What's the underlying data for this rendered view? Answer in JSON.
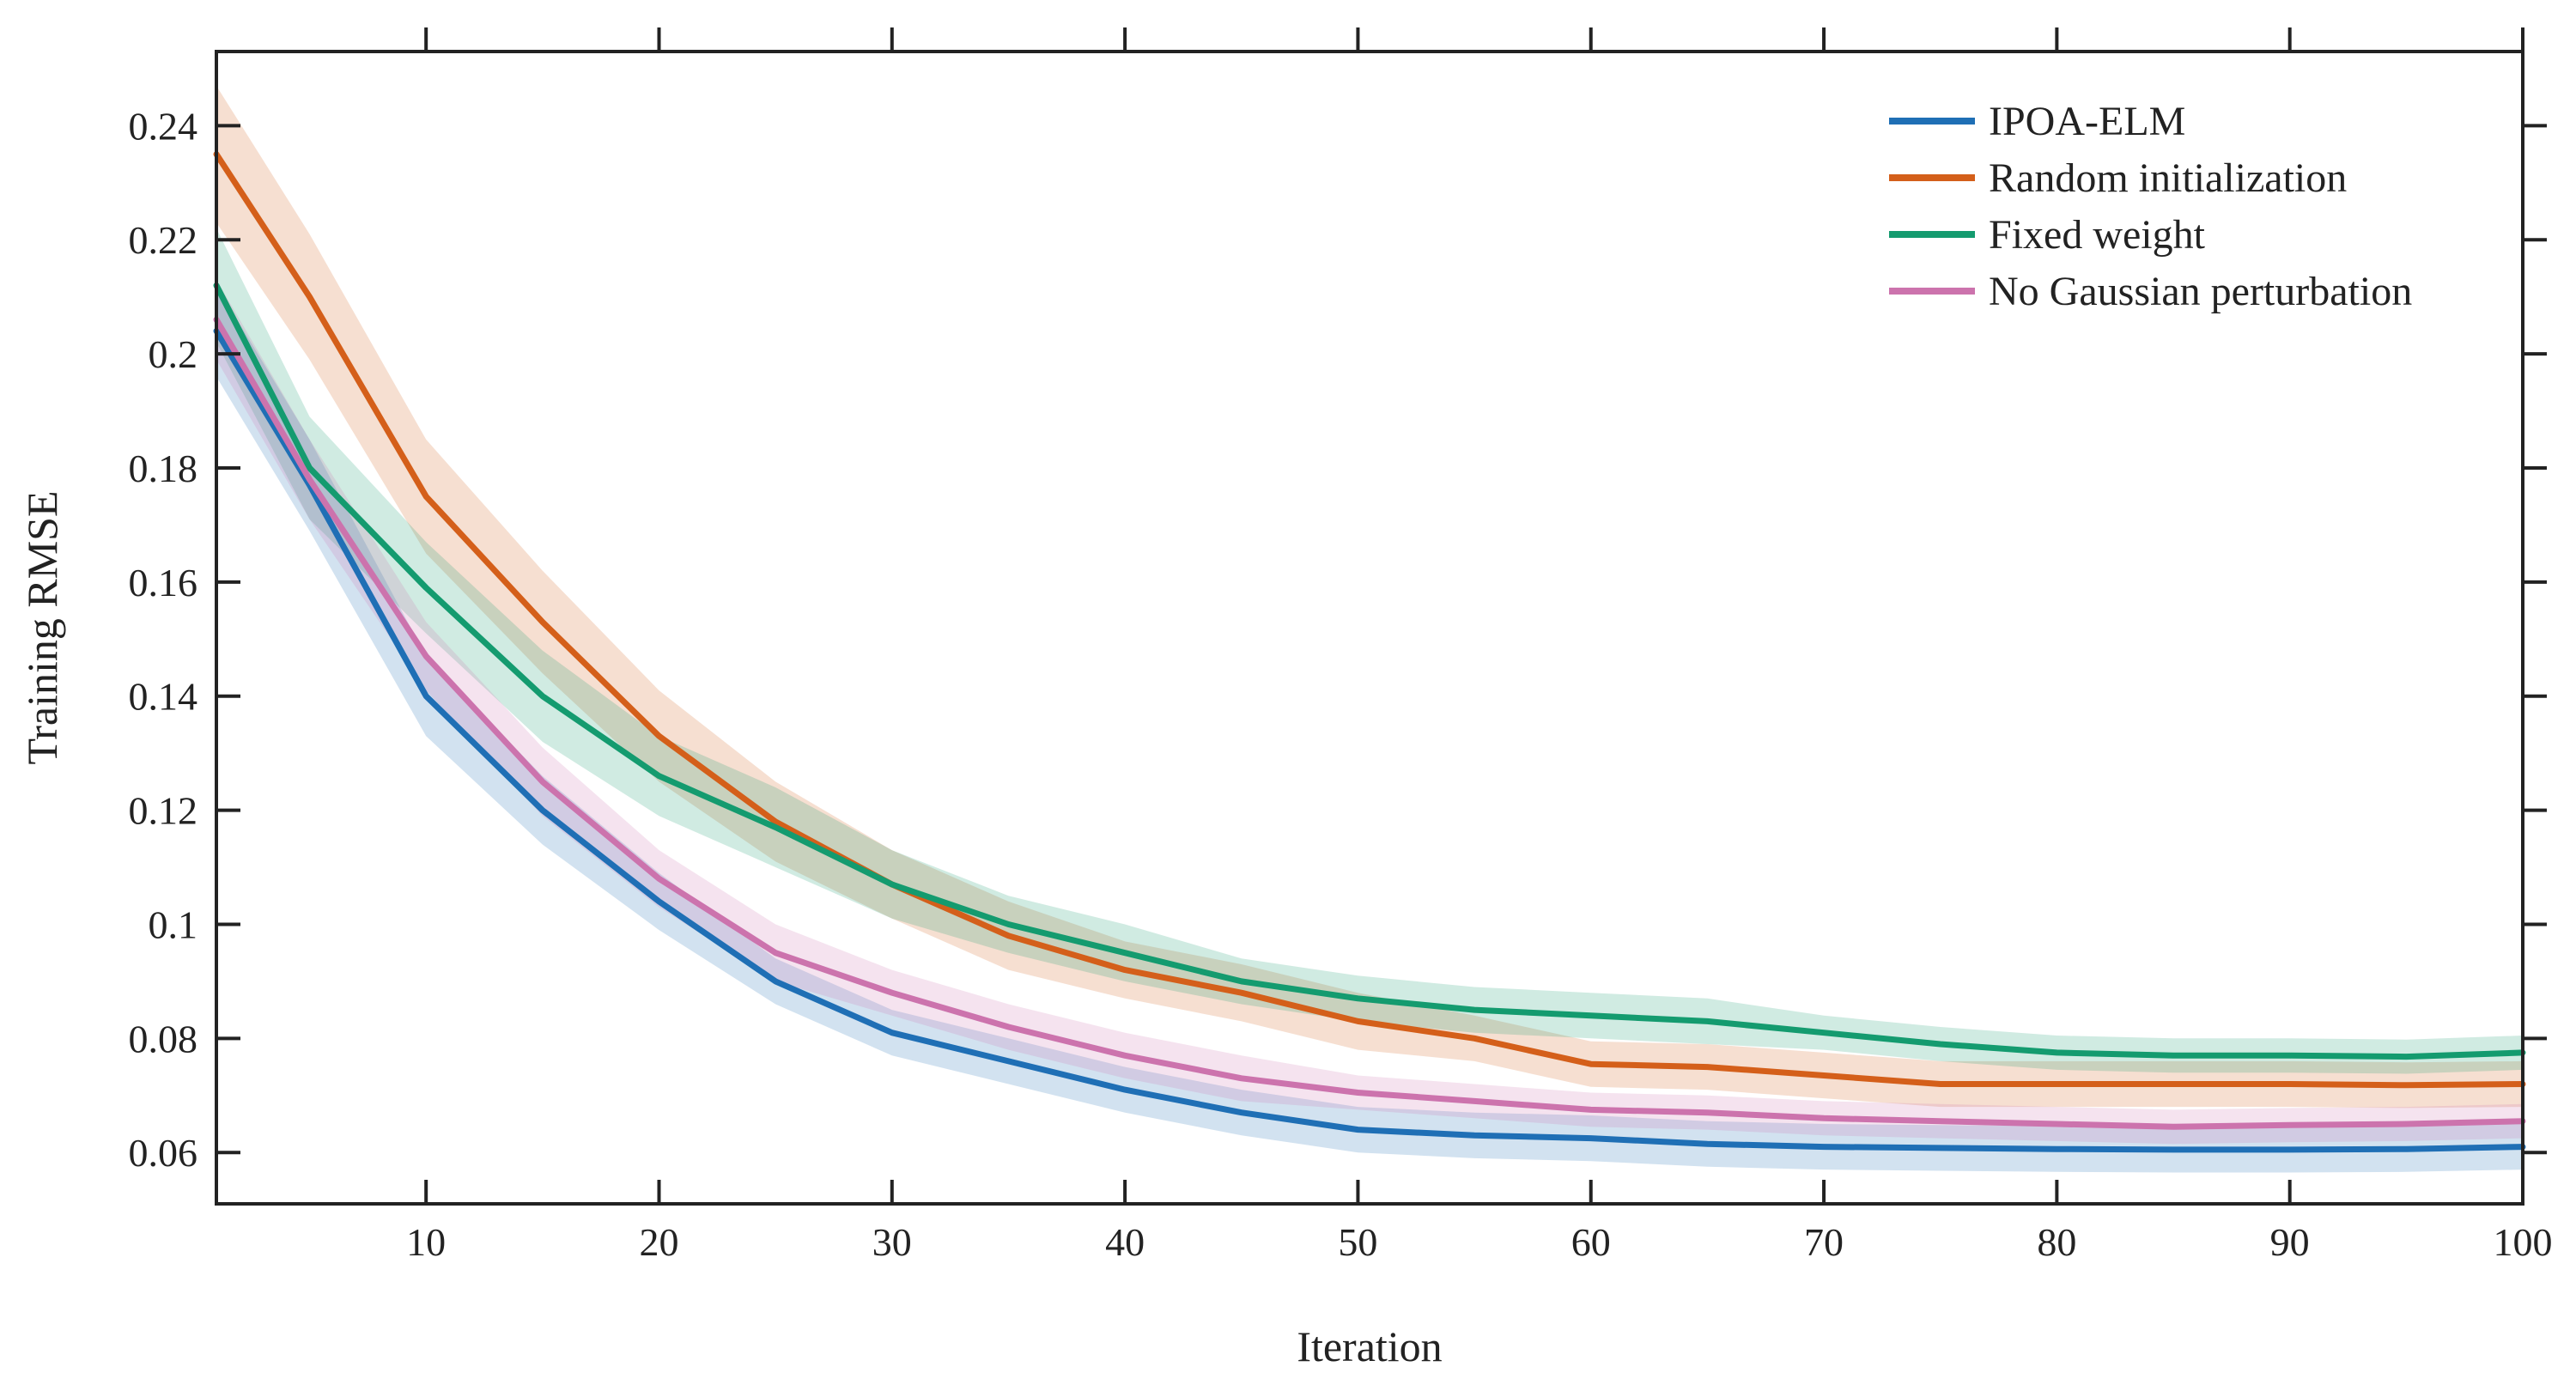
{
  "chart_data": {
    "type": "line",
    "title": "",
    "xlabel": "Iteration",
    "ylabel": "Training RMSE",
    "xlim": [
      1,
      100
    ],
    "ylim": [
      0.051,
      0.253
    ],
    "xticks": [
      10,
      20,
      30,
      40,
      50,
      60,
      70,
      80,
      90,
      100
    ],
    "xtick_labels": [
      "10",
      "20",
      "30",
      "40",
      "50",
      "60",
      "70",
      "80",
      "90",
      "100"
    ],
    "yticks": [
      0.06,
      0.08,
      0.1,
      0.12,
      0.14,
      0.16,
      0.18,
      0.2,
      0.22,
      0.24
    ],
    "ytick_labels": [
      "0.06",
      "0.08",
      "0.1",
      "0.12",
      "0.14",
      "0.16",
      "0.18",
      "0.2",
      "0.22",
      "0.24"
    ],
    "grid": false,
    "legend_position": "top-right",
    "shaded_bands": "mean ± spread",
    "series": [
      {
        "name": "IPOA-ELM",
        "color": "#1f6fb5",
        "x": [
          1,
          5,
          10,
          15,
          20,
          25,
          30,
          35,
          40,
          45,
          50,
          55,
          60,
          65,
          70,
          75,
          80,
          85,
          90,
          95,
          100
        ],
        "values": [
          0.204,
          0.177,
          0.14,
          0.12,
          0.104,
          0.09,
          0.081,
          0.076,
          0.071,
          0.067,
          0.064,
          0.063,
          0.0625,
          0.0615,
          0.061,
          0.0608,
          0.0606,
          0.0605,
          0.0605,
          0.0606,
          0.061
        ],
        "band": [
          0.008,
          0.008,
          0.007,
          0.006,
          0.005,
          0.004,
          0.004,
          0.004,
          0.004,
          0.004,
          0.004,
          0.004,
          0.004,
          0.004,
          0.004,
          0.004,
          0.004,
          0.004,
          0.004,
          0.004,
          0.004
        ]
      },
      {
        "name": "Random initialization",
        "color": "#d45f1a",
        "x": [
          1,
          5,
          10,
          15,
          20,
          25,
          30,
          35,
          40,
          45,
          50,
          55,
          60,
          65,
          70,
          75,
          80,
          85,
          90,
          95,
          100
        ],
        "values": [
          0.235,
          0.21,
          0.175,
          0.153,
          0.133,
          0.118,
          0.107,
          0.098,
          0.092,
          0.088,
          0.083,
          0.08,
          0.0755,
          0.075,
          0.0735,
          0.072,
          0.072,
          0.072,
          0.072,
          0.0718,
          0.072
        ],
        "band": [
          0.012,
          0.011,
          0.01,
          0.009,
          0.008,
          0.007,
          0.006,
          0.006,
          0.005,
          0.005,
          0.005,
          0.004,
          0.004,
          0.004,
          0.004,
          0.004,
          0.004,
          0.004,
          0.004,
          0.004,
          0.004
        ]
      },
      {
        "name": "Fixed weight",
        "color": "#149b6f",
        "x": [
          1,
          5,
          10,
          15,
          20,
          25,
          30,
          35,
          40,
          45,
          50,
          55,
          60,
          65,
          70,
          75,
          80,
          85,
          90,
          95,
          100
        ],
        "values": [
          0.212,
          0.18,
          0.159,
          0.14,
          0.126,
          0.117,
          0.107,
          0.1,
          0.095,
          0.09,
          0.087,
          0.085,
          0.084,
          0.083,
          0.081,
          0.079,
          0.0775,
          0.077,
          0.077,
          0.0768,
          0.0775
        ],
        "band": [
          0.01,
          0.009,
          0.008,
          0.008,
          0.007,
          0.007,
          0.006,
          0.005,
          0.005,
          0.004,
          0.004,
          0.004,
          0.004,
          0.004,
          0.003,
          0.003,
          0.003,
          0.003,
          0.003,
          0.003,
          0.003
        ]
      },
      {
        "name": "No Gaussian perturbation",
        "color": "#cc73ad",
        "x": [
          1,
          5,
          10,
          15,
          20,
          25,
          30,
          35,
          40,
          45,
          50,
          55,
          60,
          65,
          70,
          75,
          80,
          85,
          90,
          95,
          100
        ],
        "values": [
          0.206,
          0.178,
          0.147,
          0.125,
          0.108,
          0.095,
          0.088,
          0.082,
          0.077,
          0.073,
          0.0705,
          0.069,
          0.0675,
          0.067,
          0.066,
          0.0655,
          0.065,
          0.0645,
          0.0648,
          0.065,
          0.0655
        ],
        "band": [
          0.007,
          0.007,
          0.006,
          0.006,
          0.005,
          0.005,
          0.004,
          0.004,
          0.004,
          0.004,
          0.003,
          0.003,
          0.003,
          0.003,
          0.003,
          0.003,
          0.003,
          0.003,
          0.003,
          0.003,
          0.003
        ]
      }
    ]
  }
}
